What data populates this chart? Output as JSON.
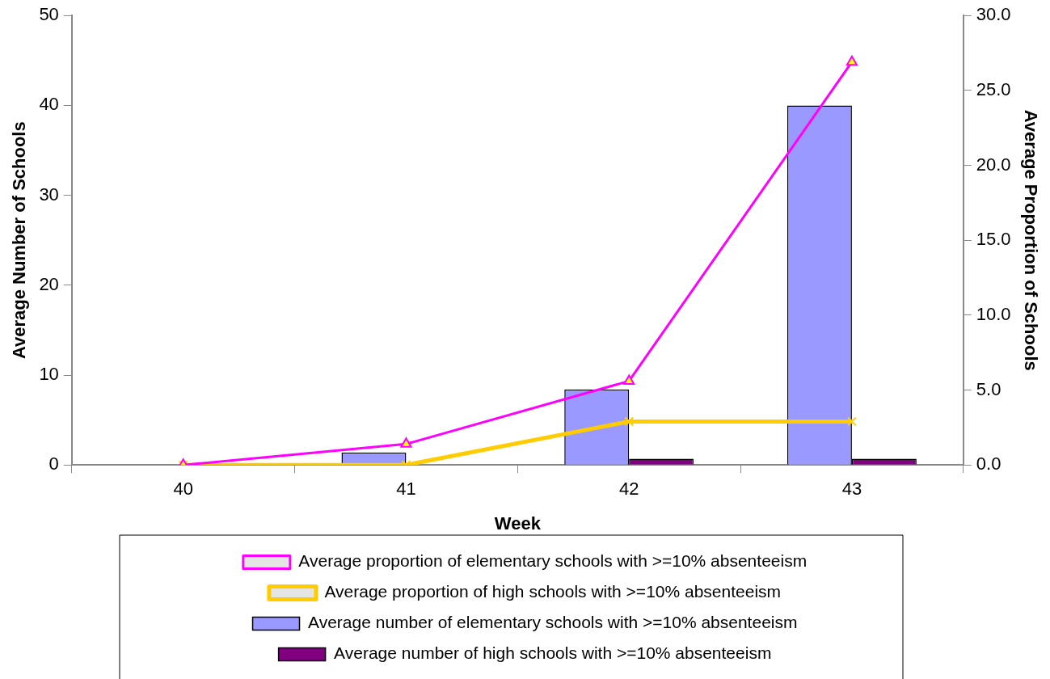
{
  "chart_data": {
    "type": "bar",
    "xlabel": "Week",
    "ylabel": "Average Number of Schools",
    "y2label": "Average Proportion of Schools",
    "categories": [
      "40",
      "41",
      "42",
      "43"
    ],
    "series": [
      {
        "name": "Average number of elementary schools with >=10% absenteeism",
        "color": "#9999ff",
        "values": [
          0,
          1.4,
          8.4,
          40.0
        ]
      },
      {
        "name": "Average number of high schools with >=10% absenteeism",
        "color": "#800080",
        "values": [
          0,
          0,
          0.7,
          0.7
        ]
      },
      {
        "type": "line",
        "axis": "y2",
        "marker": "triangle",
        "name": "Average proportion of elementary schools with >=10% absenteeism",
        "color": "#ff00ff",
        "values": [
          0,
          1.4,
          5.6,
          26.9
        ]
      },
      {
        "type": "line",
        "axis": "y2",
        "marker": "cross",
        "name": "Average proportion of high schools with >=10% absenteeism",
        "color": "#ffcc00",
        "values": [
          0,
          0,
          2.9,
          2.9
        ]
      }
    ],
    "ylim": [
      0,
      50
    ],
    "yticks": [
      0,
      10,
      20,
      30,
      40,
      50
    ],
    "y2lim": [
      0,
      30
    ],
    "y2ticks": [
      {
        "value": 0,
        "label": "0.0"
      },
      {
        "value": 5,
        "label": "5.0"
      },
      {
        "value": 10,
        "label": "10.0"
      },
      {
        "value": 15,
        "label": "15.0"
      },
      {
        "value": 20,
        "label": "20.0"
      },
      {
        "value": 25,
        "label": "25.0"
      },
      {
        "value": 30,
        "label": "30.0"
      }
    ],
    "grid": false,
    "legend": "bottom"
  }
}
